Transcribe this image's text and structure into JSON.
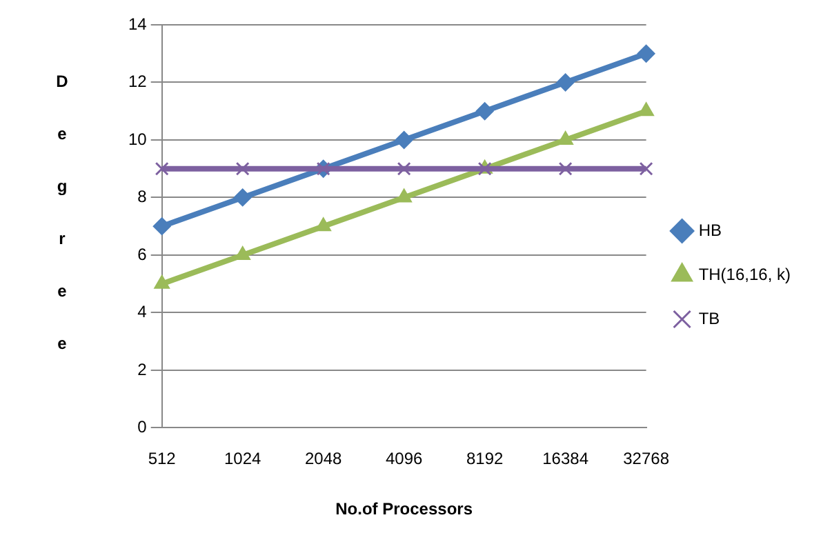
{
  "chart_data": {
    "type": "line",
    "xlabel": "No.of Processors",
    "ylabel": "Degree",
    "categories": [
      "512",
      "1024",
      "2048",
      "4096",
      "8192",
      "16384",
      "32768"
    ],
    "series": [
      {
        "name": "HB",
        "color": "#4a7ebb",
        "marker": "diamond",
        "values": [
          7,
          8,
          9,
          10,
          11,
          12,
          13
        ]
      },
      {
        "name": "TH(16,16, k)",
        "color": "#9bbb59",
        "marker": "triangle",
        "values": [
          5,
          6,
          7,
          8,
          9,
          10,
          11
        ]
      },
      {
        "name": "TB",
        "color": "#7d60a0",
        "marker": "cross",
        "values": [
          9,
          9,
          9,
          9,
          9,
          9,
          9
        ]
      }
    ],
    "ylim": [
      0,
      14
    ],
    "yticks": [
      0,
      2,
      4,
      6,
      8,
      10,
      12,
      14
    ],
    "grid": "y",
    "legend": "right"
  }
}
